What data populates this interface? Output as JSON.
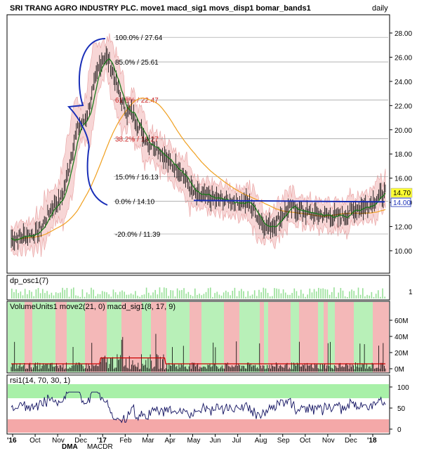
{
  "title": "SRI TRANG AGRO INDUSTRY PLC. move1 macd_sig1 movs_disp1 bomar_bands1",
  "period": "daily",
  "price": {
    "last_label": "14.70",
    "retrace_label": "14.00",
    "ticks": [
      "28.00",
      "26.00",
      "24.00",
      "22.00",
      "20.00",
      "18.00",
      "16.00",
      "14.00",
      "12.00",
      "10.00"
    ],
    "fib": [
      {
        "label": "100.0% / 27.64",
        "value": 27.64,
        "color": "#000000"
      },
      {
        "label": "85.0% / 25.61",
        "value": 25.61,
        "color": "#000000"
      },
      {
        "label": "61.8% / 22.47",
        "value": 22.47,
        "color": "#cc2222"
      },
      {
        "label": "38.2% / 19.27",
        "value": 19.27,
        "color": "#cc2222"
      },
      {
        "label": "15.0% / 16.13",
        "value": 16.13,
        "color": "#000000"
      },
      {
        "label": "0.0% / 14.10",
        "value": 14.1,
        "color": "#000000"
      },
      {
        "label": "-20.0% / 11.39",
        "value": 11.39,
        "color": "#000000"
      }
    ]
  },
  "osc": {
    "label": "dp_osc1(7)",
    "tick": "1"
  },
  "volume": {
    "label": "VolumeUnits1 move2(21, 0) macd_sig1(8, 17, 9)",
    "ticks": [
      "60M",
      "40M",
      "20M",
      "0M"
    ]
  },
  "rsi": {
    "label": "rsi1(14, 70, 30, 1)",
    "ticks": [
      "100",
      "50",
      "0"
    ]
  },
  "x_axis": {
    "labels": [
      "'16",
      "Oct",
      "Nov",
      "Dec",
      "'17",
      "Feb",
      "Mar",
      "Apr",
      "May",
      "Jun",
      "Jul",
      "Aug",
      "Sep",
      "Oct",
      "Nov",
      "Dec",
      "'18"
    ]
  },
  "bottom_tabs": [
    "DMA",
    "MACDR"
  ],
  "colors": {
    "band": "#f4c8c8",
    "sma": "#f0a020",
    "trend": "#1a2fb8",
    "price_bar": "#000000",
    "ma": "#1a7a1a",
    "vol_up": "#b8f0b8",
    "vol_down": "#f4b8b8",
    "osc_bar": "#98e098",
    "rsi_over": "#a8f0a8",
    "rsi_under": "#f4a8a8",
    "vol_ma": "#cc0000"
  },
  "chart_data": {
    "type": "line",
    "x": [
      "2016-09",
      "2016-10",
      "2016-11",
      "2016-12",
      "2017-01",
      "2017-02",
      "2017-03",
      "2017-04",
      "2017-05",
      "2017-06",
      "2017-07",
      "2017-08",
      "2017-09",
      "2017-10",
      "2017-11",
      "2017-12",
      "2018-01"
    ],
    "series": [
      {
        "name": "close",
        "values": [
          11.0,
          11.4,
          14.0,
          20.5,
          26.0,
          21.5,
          18.8,
          17.0,
          14.5,
          14.2,
          14.0,
          12.0,
          13.5,
          13.0,
          12.8,
          13.6,
          14.7
        ]
      }
    ],
    "ylim": [
      9.0,
      29.0
    ],
    "title": "SRI TRANG AGRO INDUSTRY PLC. move1 macd_sig1 movs_disp1 bomar_bands1",
    "xlabel": "",
    "ylabel": ""
  }
}
